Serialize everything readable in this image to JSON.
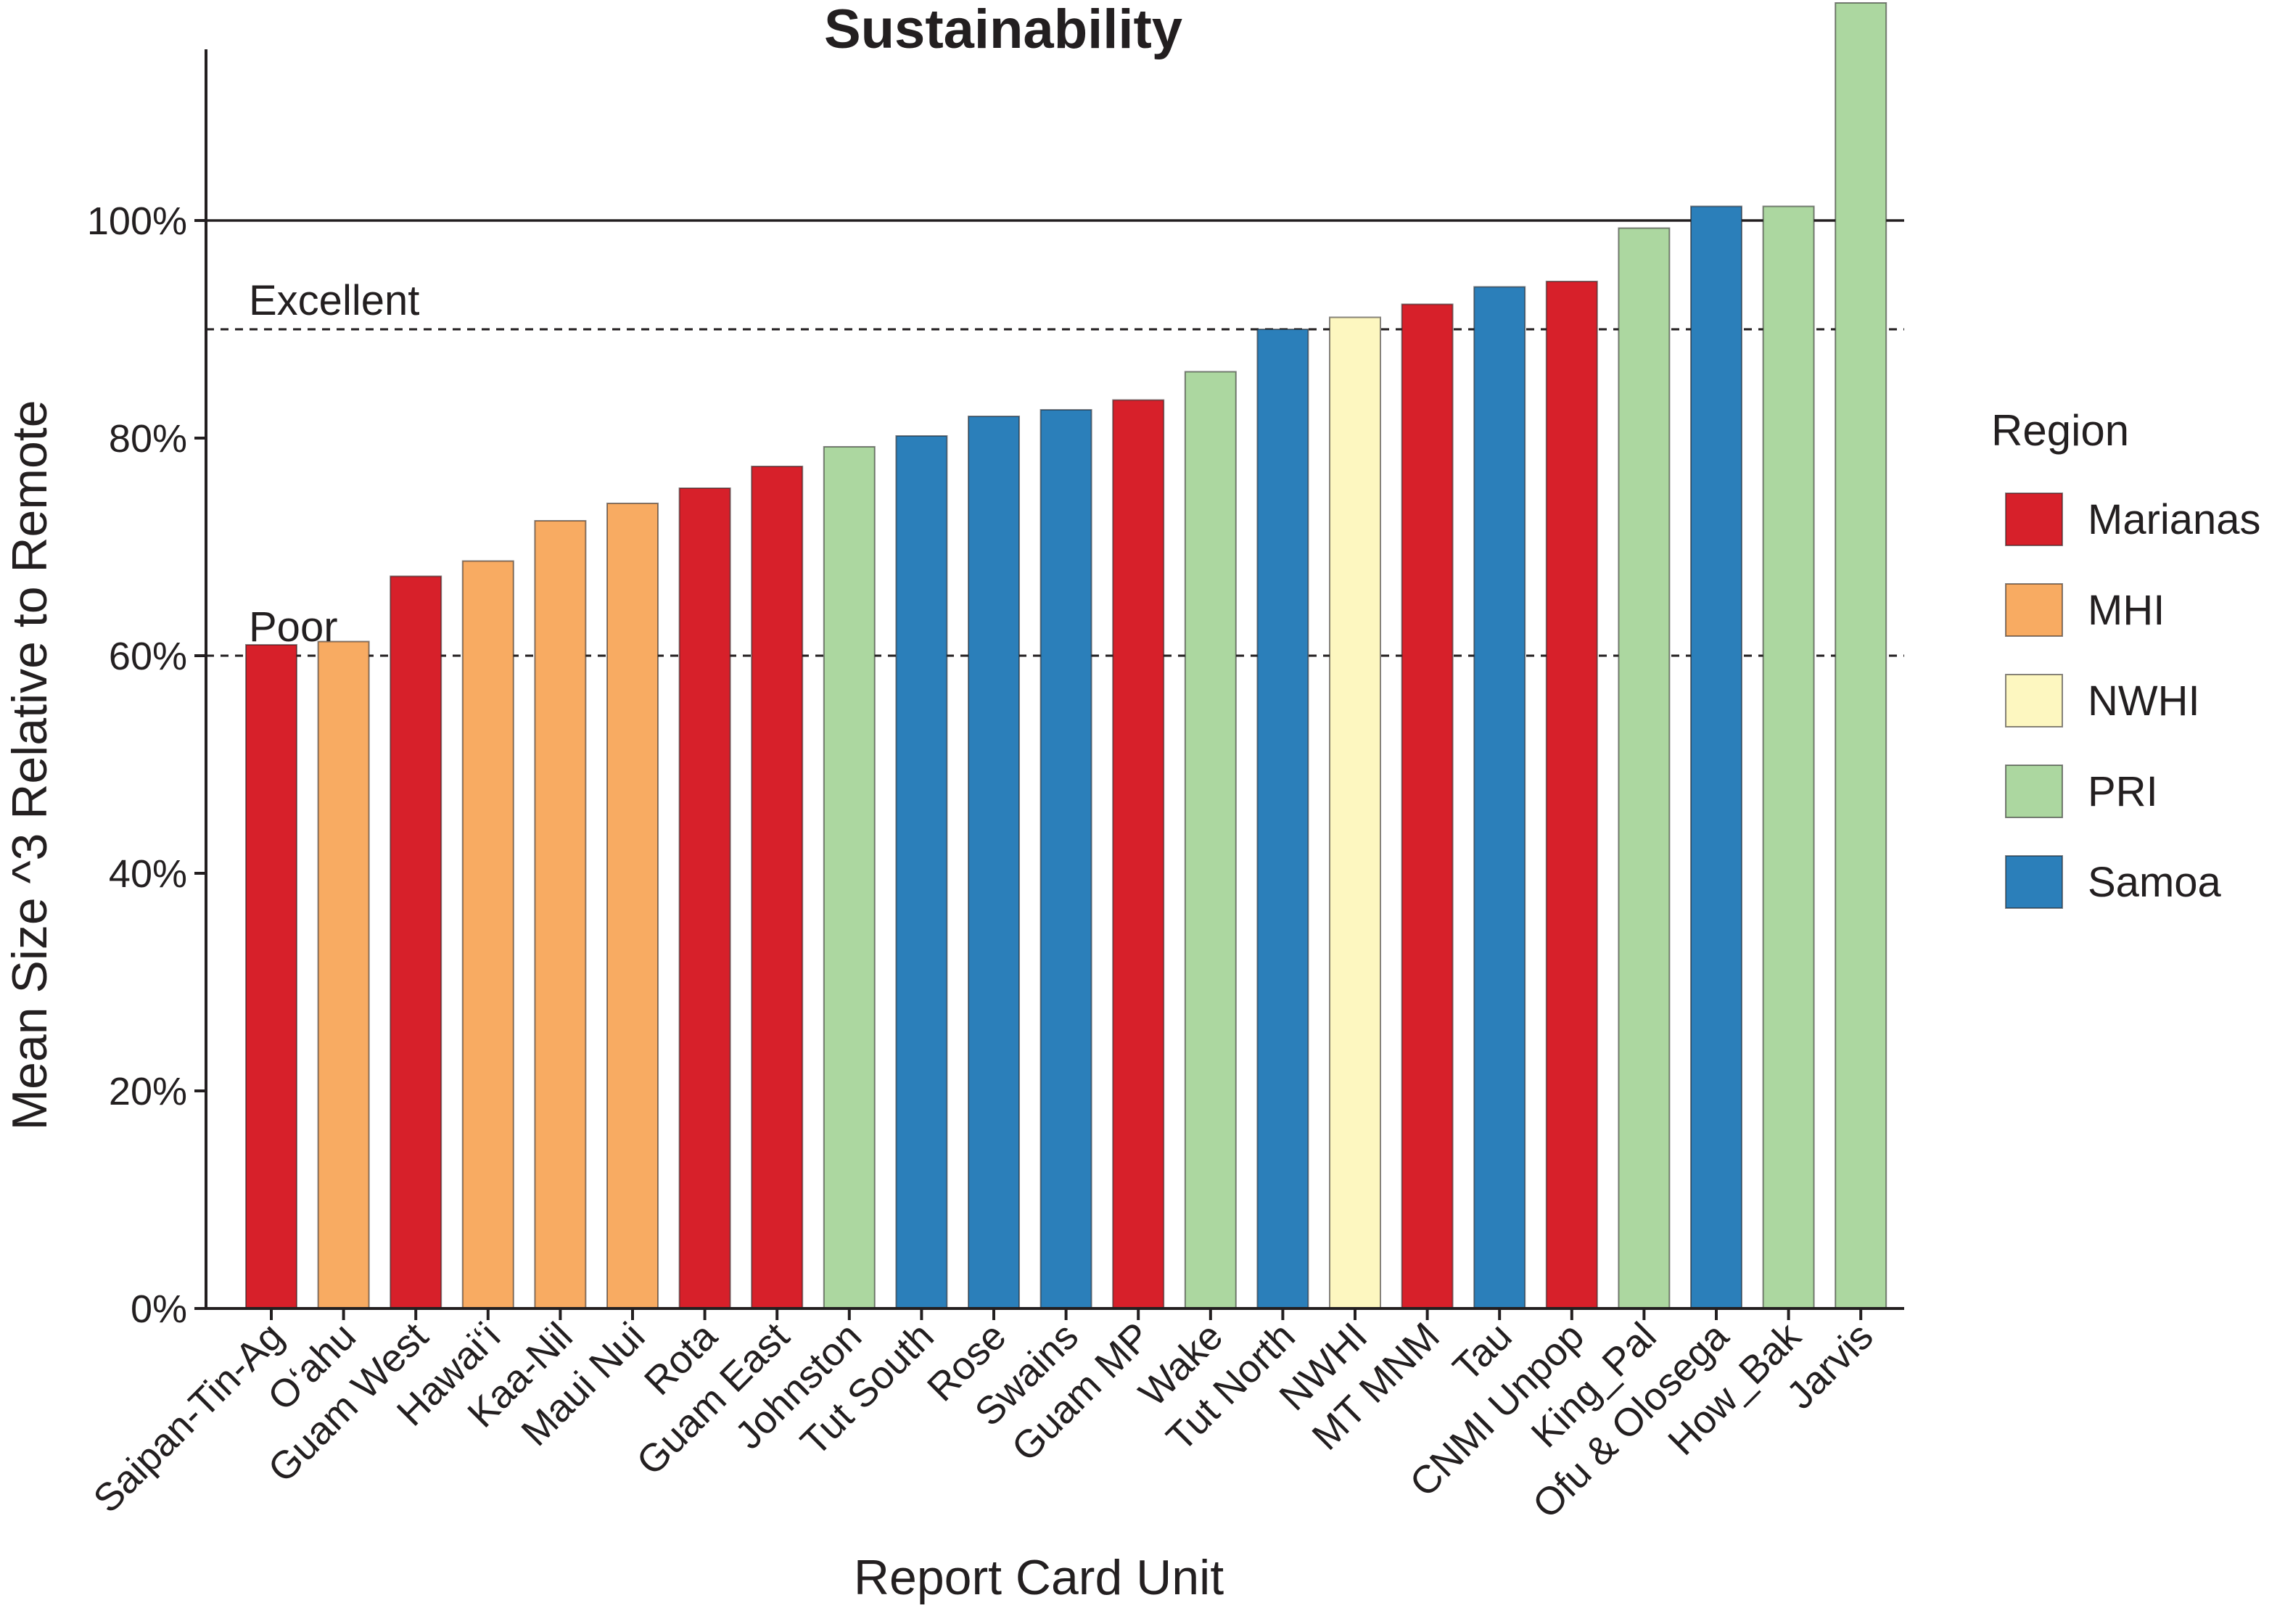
{
  "chart_data": {
    "type": "bar",
    "title": "Sustainability",
    "xlabel": "Report Card Unit",
    "ylabel": "Mean Size ^3 Relative to Remote",
    "ylim": [
      0,
      1.16
    ],
    "y_ticks": [
      {
        "value": 0,
        "label": "0%"
      },
      {
        "value": 0.2,
        "label": "20%"
      },
      {
        "value": 0.4,
        "label": "40%"
      },
      {
        "value": 0.6,
        "label": "60%"
      },
      {
        "value": 0.8,
        "label": "80%"
      },
      {
        "value": 1.0,
        "label": "100%"
      }
    ],
    "reference_lines": [
      {
        "value": 1.0,
        "style": "solid",
        "label": ""
      },
      {
        "value": 0.9,
        "style": "dashed",
        "label": "Excellent"
      },
      {
        "value": 0.6,
        "style": "dashed",
        "label": "Poor"
      }
    ],
    "categories": [
      "Saipan-Tin-Ag",
      "O‘ahu",
      "Guam West",
      "Hawai‘i",
      "Kaa-Nil",
      "Maui Nui",
      "Rota",
      "Guam East",
      "Johnston",
      "Tut South",
      "Rose",
      "Swains",
      "Guam MP",
      "Wake",
      "Tut North",
      "NWHI",
      "MT MNM",
      "Tau",
      "CNMI Unpop",
      "King_Pal",
      "Ofu & Olosega",
      "How_Bak",
      "Jarvis"
    ],
    "values": [
      0.61,
      0.613,
      0.673,
      0.687,
      0.724,
      0.74,
      0.754,
      0.774,
      0.792,
      0.802,
      0.82,
      0.826,
      0.835,
      0.861,
      0.9,
      0.911,
      0.923,
      0.939,
      0.944,
      0.993,
      1.013,
      1.013,
      1.2
    ],
    "regions": [
      "Marianas",
      "MHI",
      "Marianas",
      "MHI",
      "MHI",
      "MHI",
      "Marianas",
      "Marianas",
      "PRI",
      "Samoa",
      "Samoa",
      "Samoa",
      "Marianas",
      "PRI",
      "Samoa",
      "NWHI",
      "Marianas",
      "Samoa",
      "Marianas",
      "PRI",
      "Samoa",
      "PRI",
      "PRI"
    ],
    "legend": {
      "title": "Region",
      "position": "right",
      "entries": [
        {
          "name": "Marianas",
          "color": "#d7202a"
        },
        {
          "name": "MHI",
          "color": "#f8ab62"
        },
        {
          "name": "NWHI",
          "color": "#fdf7c0"
        },
        {
          "name": "PRI",
          "color": "#acd7a0"
        },
        {
          "name": "Samoa",
          "color": "#2b7fba"
        }
      ]
    },
    "grid": false
  }
}
